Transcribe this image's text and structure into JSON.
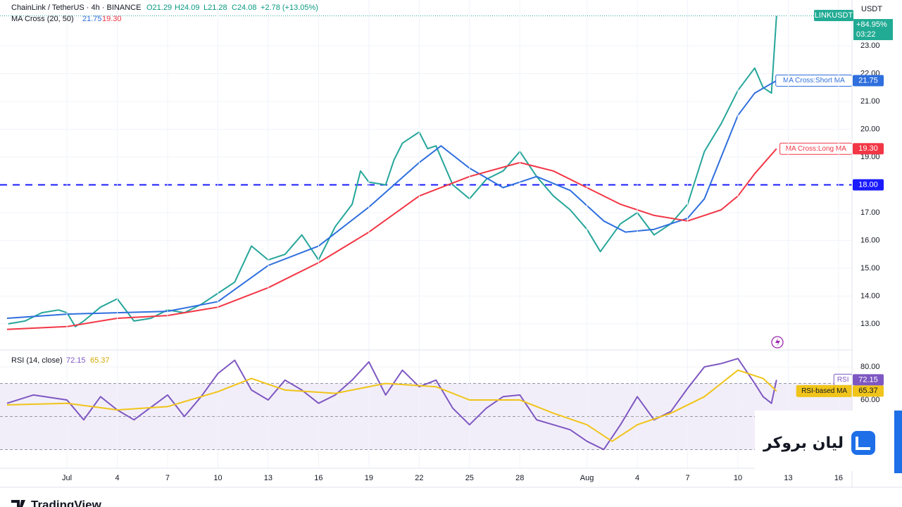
{
  "header": {
    "title": "ChainLink / TetherUS · 4h · BINANCE",
    "ohlc": [
      "O21.29",
      "H24.09",
      "L21.28",
      "C24.08"
    ],
    "change": "+2.78 (+13.05%)",
    "ma_legend": "MA Cross (20, 50)",
    "ma_values": [
      "21.75",
      "19.30"
    ],
    "rsi_legend": "RSI (14, close)",
    "rsi_values": [
      "72.15",
      "65.37"
    ],
    "currency": "USDT",
    "symbol_tag": "LINKUSDT",
    "change_tag": "+84.95%",
    "countdown": "03:22",
    "broker": "ليان بروكر",
    "brand": "TradingView"
  },
  "chart_data": [
    {
      "type": "line",
      "xlim": [
        -3.57,
        46.8
      ],
      "ylim": [
        12.06,
        24.65
      ],
      "yticks": [
        {
          "value": 13,
          "label": "13.00"
        },
        {
          "value": 14,
          "label": "14.00"
        },
        {
          "value": 15,
          "label": "15.00"
        },
        {
          "value": 16,
          "label": "16.00"
        },
        {
          "value": 17,
          "label": "17.00"
        },
        {
          "value": 18,
          "label": "18.00"
        },
        {
          "value": 19,
          "label": "19.00"
        },
        {
          "value": 20,
          "label": "20.00"
        },
        {
          "value": 21,
          "label": "21.00"
        },
        {
          "value": 22,
          "label": "22.00"
        },
        {
          "value": 23,
          "label": "23.00"
        }
      ],
      "hline": {
        "value": 18,
        "label": "18.00",
        "color": "#1a1aff"
      },
      "series": [
        {
          "name": "LINKUSDT",
          "color": "#26a69a",
          "x": [
            -3.5,
            -2.5,
            -1.5,
            -0.5,
            0,
            0.5,
            1,
            2,
            3,
            4,
            5,
            6,
            7,
            8,
            9,
            10,
            11,
            12,
            13,
            14,
            15,
            16,
            17,
            17.5,
            18,
            19,
            19.5,
            20,
            21,
            21.5,
            22,
            23,
            24,
            25,
            26,
            27,
            28,
            29,
            30,
            31,
            31.8,
            33,
            34,
            35,
            36,
            37,
            38,
            39,
            40,
            41,
            41.5,
            42,
            42.3
          ],
          "values": [
            13.0,
            13.1,
            13.4,
            13.5,
            13.4,
            12.9,
            13.1,
            13.6,
            13.9,
            13.1,
            13.2,
            13.5,
            13.4,
            13.7,
            14.1,
            14.5,
            15.8,
            15.3,
            15.5,
            16.2,
            15.3,
            16.5,
            17.3,
            18.5,
            18.1,
            18.0,
            18.9,
            19.5,
            19.9,
            19.3,
            19.4,
            18.0,
            17.5,
            18.2,
            18.5,
            19.2,
            18.3,
            17.6,
            17.1,
            16.4,
            15.6,
            16.6,
            17.0,
            16.2,
            16.6,
            17.3,
            19.2,
            20.2,
            21.4,
            22.2,
            21.5,
            21.3,
            24.08
          ]
        },
        {
          "name": "MA Cross:Short MA",
          "color": "#2f6fde",
          "tag": {
            "value": 21.75,
            "label": "21.75"
          },
          "x": [
            -3.57,
            0,
            3,
            6,
            9,
            12,
            15,
            18,
            21,
            22.3,
            24,
            26,
            28,
            30,
            32,
            33.3,
            35,
            37,
            38,
            39,
            40,
            41,
            42.3
          ],
          "values": [
            13.2,
            13.35,
            13.4,
            13.45,
            13.8,
            15.1,
            15.8,
            17.2,
            18.8,
            19.4,
            18.6,
            17.9,
            18.3,
            17.8,
            16.7,
            16.3,
            16.4,
            16.8,
            17.5,
            19.0,
            20.5,
            21.3,
            21.75
          ]
        },
        {
          "name": "MA Cross:Long MA",
          "color": "#f23645",
          "tag": {
            "value": 19.3,
            "label": "19.30"
          },
          "x": [
            -3.57,
            0,
            3,
            6,
            9,
            12,
            15,
            18,
            21,
            24,
            27,
            29,
            31,
            33,
            35,
            37,
            39,
            40,
            41,
            42.3
          ],
          "values": [
            12.8,
            12.9,
            13.2,
            13.3,
            13.6,
            14.3,
            15.2,
            16.3,
            17.6,
            18.3,
            18.8,
            18.5,
            17.9,
            17.3,
            16.9,
            16.7,
            17.1,
            17.6,
            18.4,
            19.3
          ]
        }
      ]
    },
    {
      "type": "line",
      "xlim": [
        -3.57,
        46.8
      ],
      "ylim": [
        18.7,
        90.2
      ],
      "yticks": [
        {
          "value": 60,
          "label": "60.00"
        },
        {
          "value": 80,
          "label": "80.00"
        }
      ],
      "levels": [
        70,
        50,
        30
      ],
      "band": [
        30,
        70
      ],
      "xticks": [
        {
          "value": 0,
          "label": "Jul"
        },
        {
          "value": 3,
          "label": "4"
        },
        {
          "value": 6,
          "label": "7"
        },
        {
          "value": 9,
          "label": "10"
        },
        {
          "value": 12,
          "label": "13"
        },
        {
          "value": 15,
          "label": "16"
        },
        {
          "value": 18,
          "label": "19"
        },
        {
          "value": 21,
          "label": "22"
        },
        {
          "value": 24,
          "label": "25"
        },
        {
          "value": 27,
          "label": "28"
        },
        {
          "value": 31,
          "label": "Aug"
        },
        {
          "value": 34,
          "label": "4"
        },
        {
          "value": 37,
          "label": "7"
        },
        {
          "value": 40,
          "label": "10"
        },
        {
          "value": 43,
          "label": "13"
        },
        {
          "value": 46,
          "label": "16"
        }
      ],
      "series": [
        {
          "name": "RSI",
          "color": "#7e57c2",
          "tag": {
            "value": 72.15,
            "label": "72.15"
          },
          "x": [
            -3.57,
            -2,
            0,
            1,
            2,
            3,
            4,
            6,
            7,
            8,
            9,
            10,
            11,
            12,
            13,
            14,
            15,
            16,
            17,
            18,
            19,
            20,
            21,
            22,
            23,
            24,
            25,
            26,
            27,
            28,
            29,
            30,
            31,
            32,
            33,
            34,
            35,
            36,
            37,
            38,
            39,
            40,
            41,
            41.5,
            42,
            42.3
          ],
          "values": [
            58,
            63,
            60,
            48,
            62,
            54,
            48,
            63,
            50,
            62,
            76,
            84,
            66,
            60,
            72,
            66,
            58,
            63,
            72,
            83,
            63,
            78,
            68,
            72,
            55,
            45,
            55,
            62,
            63,
            48,
            45,
            42,
            35,
            30,
            45,
            62,
            48,
            53,
            67,
            80,
            82,
            85,
            70,
            62,
            58,
            72.15
          ]
        },
        {
          "name": "RSI-based MA",
          "color": "#f0c419",
          "tag": {
            "value": 65.37,
            "label": "65.37"
          },
          "x": [
            -3.57,
            0,
            3,
            6,
            9,
            11,
            13,
            16,
            19,
            22,
            24,
            27,
            29,
            31,
            32.5,
            34,
            36,
            38,
            40,
            41.5,
            42.3
          ],
          "values": [
            57,
            58,
            54,
            56,
            65,
            73,
            66,
            64,
            70,
            68,
            60,
            60,
            52,
            45,
            35,
            45,
            52,
            62,
            78,
            73,
            65.37
          ]
        }
      ]
    }
  ]
}
